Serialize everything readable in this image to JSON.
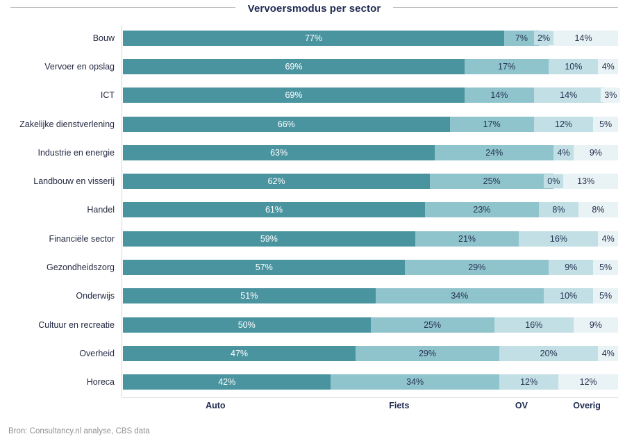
{
  "chart": {
    "title": "Vervoersmodus per sector",
    "source": "Bron: Consultancy.nl analyse, CBS data"
  },
  "chart_data": {
    "type": "bar",
    "orientation": "horizontal",
    "stacked": true,
    "title": "Vervoersmodus per sector",
    "xlim": [
      0,
      100
    ],
    "value_suffix": "%",
    "grid": false,
    "categories": [
      "Bouw",
      "Vervoer en opslag",
      "ICT",
      "Zakelijke dienstverlening",
      "Industrie en energie",
      "Landbouw en visserij",
      "Handel",
      "Financiële sector",
      "Gezondheidszorg",
      "Onderwijs",
      "Cultuur en recreatie",
      "Overheid",
      "Horeca"
    ],
    "series": [
      {
        "name": "Auto",
        "color": "#4a94a0",
        "label_color": "#ffffff",
        "values": [
          77,
          69,
          69,
          66,
          63,
          62,
          61,
          59,
          57,
          51,
          50,
          47,
          42
        ]
      },
      {
        "name": "Fiets",
        "color": "#90c4cc",
        "label_color": "#243252",
        "values": [
          7,
          17,
          14,
          17,
          24,
          25,
          23,
          21,
          29,
          34,
          25,
          29,
          34
        ]
      },
      {
        "name": "OV",
        "color": "#c1dfe5",
        "label_color": "#243252",
        "values": [
          2,
          10,
          14,
          12,
          4,
          0,
          8,
          16,
          9,
          10,
          16,
          20,
          12
        ]
      },
      {
        "name": "Overig",
        "color": "#e9f2f4",
        "label_color": "#243252",
        "values": [
          14,
          4,
          3,
          5,
          9,
          13,
          8,
          4,
          5,
          5,
          9,
          4,
          12
        ]
      }
    ],
    "legend": {
      "position": "bottom",
      "labels": [
        "Auto",
        "Fiets",
        "OV",
        "Overig"
      ],
      "centers_pct": [
        18.7,
        55.8,
        80.5,
        93.7
      ]
    },
    "source": "Bron: Consultancy.nl analyse, CBS data"
  }
}
